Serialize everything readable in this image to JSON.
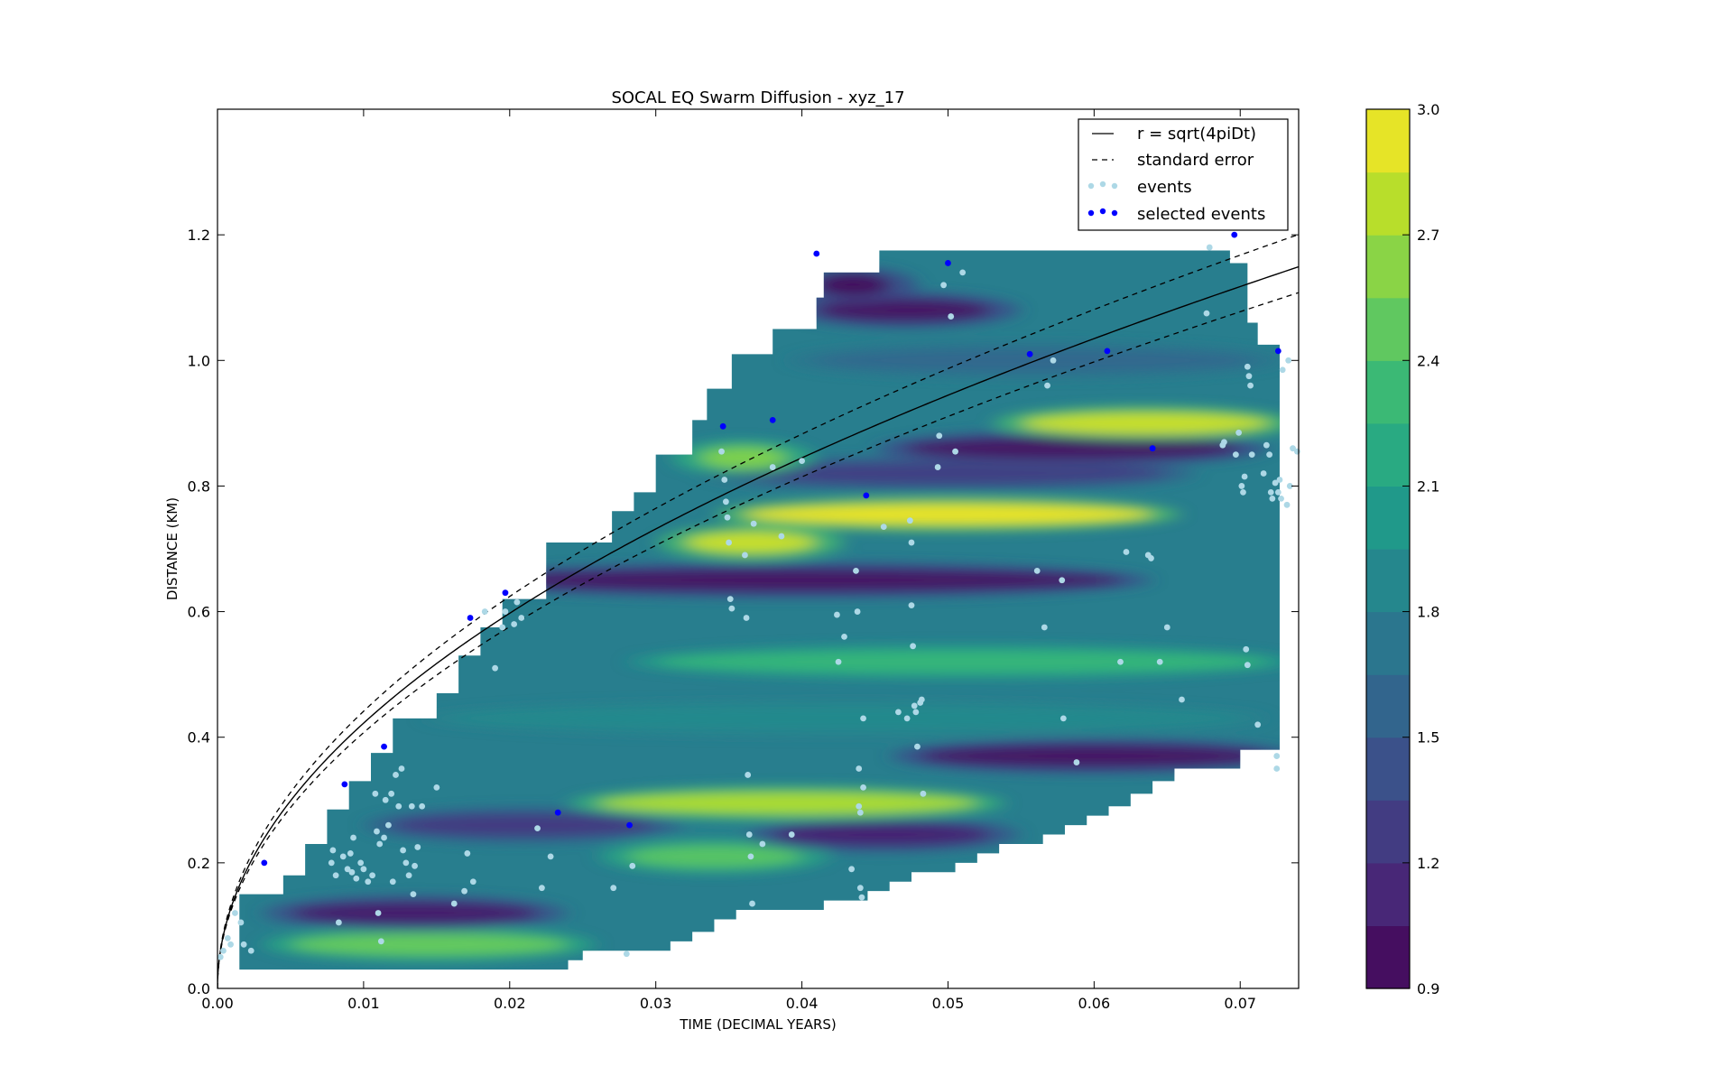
{
  "chart_data": {
    "type": "contour",
    "title": "SOCAL EQ Swarm Diffusion - xyz_17",
    "xlabel": "TIME (DECIMAL YEARS)",
    "ylabel": "DISTANCE (KM)",
    "xlim": [
      0.0,
      0.074
    ],
    "ylim": [
      0.0,
      1.4
    ],
    "xticks": [
      "0.00",
      "0.01",
      "0.02",
      "0.03",
      "0.04",
      "0.05",
      "0.06",
      "0.07"
    ],
    "yticks": [
      "0.0",
      "0.2",
      "0.4",
      "0.6",
      "0.8",
      "1.0",
      "1.2"
    ],
    "colorbar": {
      "colormap": "viridis",
      "min": 0.9,
      "max": 3.0,
      "ticks": [
        "0.9",
        "1.2",
        "1.5",
        "1.8",
        "2.1",
        "2.4",
        "2.7",
        "3.0"
      ],
      "levels": 14
    },
    "legend": {
      "position": "upper right",
      "entries": [
        {
          "label": "r = sqrt(4piDt)",
          "style": "solid-line",
          "color": "#000000"
        },
        {
          "label": "standard error",
          "style": "dashed-line",
          "color": "#000000"
        },
        {
          "label": "events",
          "style": "points",
          "color": "#add8e6"
        },
        {
          "label": "selected events",
          "style": "points",
          "color": "#0000ff"
        }
      ]
    },
    "model": {
      "name": "r = sqrt(4piDt)",
      "D": 1.42,
      "standard_error_D": [
        1.32,
        1.55
      ]
    },
    "contour_bands": [
      {
        "y": 0.07,
        "x_from": 0.005,
        "x_to": 0.024,
        "value": 2.5
      },
      {
        "y": 0.12,
        "x_from": 0.005,
        "x_to": 0.022,
        "value": 1.05
      },
      {
        "y": 0.21,
        "x_from": 0.028,
        "x_to": 0.04,
        "value": 2.45
      },
      {
        "y": 0.245,
        "x_from": 0.038,
        "x_to": 0.053,
        "value": 1.1
      },
      {
        "y": 0.26,
        "x_from": 0.012,
        "x_to": 0.03,
        "value": 1.25
      },
      {
        "y": 0.295,
        "x_from": 0.026,
        "x_to": 0.052,
        "value": 2.75
      },
      {
        "y": 0.37,
        "x_from": 0.048,
        "x_to": 0.072,
        "value": 1.0
      },
      {
        "y": 0.43,
        "x_from": 0.016,
        "x_to": 0.07,
        "value": 1.9
      },
      {
        "y": 0.52,
        "x_from": 0.03,
        "x_to": 0.072,
        "value": 2.3
      },
      {
        "y": 0.65,
        "x_from": 0.018,
        "x_to": 0.062,
        "value": 1.0
      },
      {
        "y": 0.71,
        "x_from": 0.032,
        "x_to": 0.041,
        "value": 2.85
      },
      {
        "y": 0.755,
        "x_from": 0.036,
        "x_to": 0.064,
        "value": 2.95
      },
      {
        "y": 0.82,
        "x_from": 0.035,
        "x_to": 0.065,
        "value": 1.3
      },
      {
        "y": 0.845,
        "x_from": 0.033,
        "x_to": 0.039,
        "value": 2.6
      },
      {
        "y": 0.86,
        "x_from": 0.047,
        "x_to": 0.07,
        "value": 1.0
      },
      {
        "y": 0.9,
        "x_from": 0.055,
        "x_to": 0.072,
        "value": 2.85
      },
      {
        "y": 1.0,
        "x_from": 0.041,
        "x_to": 0.071,
        "value": 1.6
      },
      {
        "y": 1.08,
        "x_from": 0.041,
        "x_to": 0.053,
        "value": 1.0
      },
      {
        "y": 1.12,
        "x_from": 0.041,
        "x_to": 0.046,
        "value": 0.95
      }
    ],
    "events": [
      {
        "x": 0.0002,
        "y": 0.05
      },
      {
        "x": 0.0004,
        "y": 0.06
      },
      {
        "x": 0.0007,
        "y": 0.08
      },
      {
        "x": 0.0009,
        "y": 0.07
      },
      {
        "x": 0.0012,
        "y": 0.12
      },
      {
        "x": 0.0016,
        "y": 0.105
      },
      {
        "x": 0.0018,
        "y": 0.07
      },
      {
        "x": 0.0023,
        "y": 0.06
      },
      {
        "x": 0.0078,
        "y": 0.2
      },
      {
        "x": 0.0079,
        "y": 0.22
      },
      {
        "x": 0.0081,
        "y": 0.18
      },
      {
        "x": 0.0083,
        "y": 0.105
      },
      {
        "x": 0.0086,
        "y": 0.21
      },
      {
        "x": 0.0089,
        "y": 0.19
      },
      {
        "x": 0.0091,
        "y": 0.215
      },
      {
        "x": 0.0092,
        "y": 0.185
      },
      {
        "x": 0.0093,
        "y": 0.24
      },
      {
        "x": 0.0095,
        "y": 0.175
      },
      {
        "x": 0.0098,
        "y": 0.2
      },
      {
        "x": 0.01,
        "y": 0.19
      },
      {
        "x": 0.0103,
        "y": 0.17
      },
      {
        "x": 0.0106,
        "y": 0.18
      },
      {
        "x": 0.0108,
        "y": 0.31
      },
      {
        "x": 0.0109,
        "y": 0.25
      },
      {
        "x": 0.011,
        "y": 0.12
      },
      {
        "x": 0.0111,
        "y": 0.23
      },
      {
        "x": 0.0112,
        "y": 0.075
      },
      {
        "x": 0.0114,
        "y": 0.24
      },
      {
        "x": 0.0115,
        "y": 0.3
      },
      {
        "x": 0.0117,
        "y": 0.26
      },
      {
        "x": 0.0119,
        "y": 0.31
      },
      {
        "x": 0.012,
        "y": 0.17
      },
      {
        "x": 0.0122,
        "y": 0.34
      },
      {
        "x": 0.0124,
        "y": 0.29
      },
      {
        "x": 0.0126,
        "y": 0.35
      },
      {
        "x": 0.0127,
        "y": 0.22
      },
      {
        "x": 0.0129,
        "y": 0.2
      },
      {
        "x": 0.0131,
        "y": 0.18
      },
      {
        "x": 0.0133,
        "y": 0.29
      },
      {
        "x": 0.0134,
        "y": 0.15
      },
      {
        "x": 0.0135,
        "y": 0.195
      },
      {
        "x": 0.0137,
        "y": 0.225
      },
      {
        "x": 0.014,
        "y": 0.29
      },
      {
        "x": 0.015,
        "y": 0.32
      },
      {
        "x": 0.0162,
        "y": 0.135
      },
      {
        "x": 0.0169,
        "y": 0.155
      },
      {
        "x": 0.0171,
        "y": 0.215
      },
      {
        "x": 0.0175,
        "y": 0.17
      },
      {
        "x": 0.0183,
        "y": 0.6
      },
      {
        "x": 0.019,
        "y": 0.51
      },
      {
        "x": 0.0195,
        "y": 0.575
      },
      {
        "x": 0.0197,
        "y": 0.6
      },
      {
        "x": 0.0203,
        "y": 0.58
      },
      {
        "x": 0.0205,
        "y": 0.615
      },
      {
        "x": 0.0208,
        "y": 0.59
      },
      {
        "x": 0.0219,
        "y": 0.255
      },
      {
        "x": 0.0222,
        "y": 0.16
      },
      {
        "x": 0.0228,
        "y": 0.21
      },
      {
        "x": 0.0271,
        "y": 0.16
      },
      {
        "x": 0.028,
        "y": 0.055
      },
      {
        "x": 0.0284,
        "y": 0.195
      },
      {
        "x": 0.0345,
        "y": 0.855
      },
      {
        "x": 0.0347,
        "y": 0.81
      },
      {
        "x": 0.0348,
        "y": 0.775
      },
      {
        "x": 0.0349,
        "y": 0.75
      },
      {
        "x": 0.035,
        "y": 0.71
      },
      {
        "x": 0.0351,
        "y": 0.62
      },
      {
        "x": 0.0352,
        "y": 0.605
      },
      {
        "x": 0.0361,
        "y": 0.69
      },
      {
        "x": 0.0362,
        "y": 0.59
      },
      {
        "x": 0.0363,
        "y": 0.34
      },
      {
        "x": 0.0364,
        "y": 0.245
      },
      {
        "x": 0.0365,
        "y": 0.21
      },
      {
        "x": 0.0366,
        "y": 0.135
      },
      {
        "x": 0.0367,
        "y": 0.74
      },
      {
        "x": 0.0373,
        "y": 0.23
      },
      {
        "x": 0.038,
        "y": 0.83
      },
      {
        "x": 0.0386,
        "y": 0.72
      },
      {
        "x": 0.0393,
        "y": 0.245
      },
      {
        "x": 0.04,
        "y": 0.84
      },
      {
        "x": 0.0424,
        "y": 0.595
      },
      {
        "x": 0.0425,
        "y": 0.52
      },
      {
        "x": 0.0429,
        "y": 0.56
      },
      {
        "x": 0.0434,
        "y": 0.19
      },
      {
        "x": 0.0437,
        "y": 0.665
      },
      {
        "x": 0.0438,
        "y": 0.6
      },
      {
        "x": 0.0439,
        "y": 0.35
      },
      {
        "x": 0.0439,
        "y": 0.29
      },
      {
        "x": 0.044,
        "y": 0.28
      },
      {
        "x": 0.044,
        "y": 0.16
      },
      {
        "x": 0.0441,
        "y": 0.145
      },
      {
        "x": 0.0442,
        "y": 0.32
      },
      {
        "x": 0.0442,
        "y": 0.43
      },
      {
        "x": 0.0456,
        "y": 0.735
      },
      {
        "x": 0.0466,
        "y": 0.44
      },
      {
        "x": 0.0472,
        "y": 0.43
      },
      {
        "x": 0.0474,
        "y": 0.745
      },
      {
        "x": 0.0475,
        "y": 0.71
      },
      {
        "x": 0.0475,
        "y": 0.61
      },
      {
        "x": 0.0476,
        "y": 0.545
      },
      {
        "x": 0.0477,
        "y": 0.45
      },
      {
        "x": 0.0478,
        "y": 0.44
      },
      {
        "x": 0.0479,
        "y": 0.385
      },
      {
        "x": 0.0481,
        "y": 0.455
      },
      {
        "x": 0.0482,
        "y": 0.46
      },
      {
        "x": 0.0483,
        "y": 0.31
      },
      {
        "x": 0.0493,
        "y": 0.83
      },
      {
        "x": 0.0494,
        "y": 0.88
      },
      {
        "x": 0.0502,
        "y": 1.07
      },
      {
        "x": 0.0505,
        "y": 0.855
      },
      {
        "x": 0.0497,
        "y": 1.12
      },
      {
        "x": 0.051,
        "y": 1.14
      },
      {
        "x": 0.0561,
        "y": 0.665
      },
      {
        "x": 0.0566,
        "y": 0.575
      },
      {
        "x": 0.0568,
        "y": 0.96
      },
      {
        "x": 0.0572,
        "y": 1.0
      },
      {
        "x": 0.0578,
        "y": 0.65
      },
      {
        "x": 0.0579,
        "y": 0.43
      },
      {
        "x": 0.0588,
        "y": 0.36
      },
      {
        "x": 0.0618,
        "y": 0.52
      },
      {
        "x": 0.0622,
        "y": 0.695
      },
      {
        "x": 0.0637,
        "y": 0.69
      },
      {
        "x": 0.0639,
        "y": 0.685
      },
      {
        "x": 0.0645,
        "y": 0.52
      },
      {
        "x": 0.065,
        "y": 0.575
      },
      {
        "x": 0.066,
        "y": 0.46
      },
      {
        "x": 0.0677,
        "y": 1.075
      },
      {
        "x": 0.0679,
        "y": 1.18
      },
      {
        "x": 0.0688,
        "y": 0.865
      },
      {
        "x": 0.0689,
        "y": 0.87
      },
      {
        "x": 0.0697,
        "y": 0.85
      },
      {
        "x": 0.0699,
        "y": 0.885
      },
      {
        "x": 0.0701,
        "y": 0.8
      },
      {
        "x": 0.0702,
        "y": 0.79
      },
      {
        "x": 0.0703,
        "y": 0.815
      },
      {
        "x": 0.0704,
        "y": 0.54
      },
      {
        "x": 0.0705,
        "y": 0.515
      },
      {
        "x": 0.0705,
        "y": 0.99
      },
      {
        "x": 0.0706,
        "y": 0.975
      },
      {
        "x": 0.0707,
        "y": 0.96
      },
      {
        "x": 0.0708,
        "y": 0.85
      },
      {
        "x": 0.0712,
        "y": 0.42
      },
      {
        "x": 0.0716,
        "y": 0.82
      },
      {
        "x": 0.0718,
        "y": 0.865
      },
      {
        "x": 0.072,
        "y": 0.85
      },
      {
        "x": 0.0721,
        "y": 0.79
      },
      {
        "x": 0.0722,
        "y": 0.78
      },
      {
        "x": 0.0724,
        "y": 0.805
      },
      {
        "x": 0.0725,
        "y": 0.35
      },
      {
        "x": 0.0725,
        "y": 0.37
      },
      {
        "x": 0.0726,
        "y": 0.79
      },
      {
        "x": 0.0727,
        "y": 0.81
      },
      {
        "x": 0.0728,
        "y": 0.78
      },
      {
        "x": 0.0729,
        "y": 0.985
      },
      {
        "x": 0.0732,
        "y": 0.77
      },
      {
        "x": 0.0733,
        "y": 1.0
      },
      {
        "x": 0.0734,
        "y": 0.8
      },
      {
        "x": 0.0736,
        "y": 0.86
      },
      {
        "x": 0.0739,
        "y": 0.855
      }
    ],
    "selected_events": [
      {
        "x": 0.0032,
        "y": 0.2
      },
      {
        "x": 0.0087,
        "y": 0.325
      },
      {
        "x": 0.0114,
        "y": 0.385
      },
      {
        "x": 0.0173,
        "y": 0.59
      },
      {
        "x": 0.0197,
        "y": 0.63
      },
      {
        "x": 0.0233,
        "y": 0.28
      },
      {
        "x": 0.0282,
        "y": 0.26
      },
      {
        "x": 0.0346,
        "y": 0.895
      },
      {
        "x": 0.038,
        "y": 0.905
      },
      {
        "x": 0.041,
        "y": 1.17
      },
      {
        "x": 0.0444,
        "y": 0.785
      },
      {
        "x": 0.05,
        "y": 1.155
      },
      {
        "x": 0.0556,
        "y": 1.01
      },
      {
        "x": 0.0609,
        "y": 1.015
      },
      {
        "x": 0.064,
        "y": 0.86
      },
      {
        "x": 0.0696,
        "y": 1.2
      },
      {
        "x": 0.0726,
        "y": 1.015
      }
    ]
  }
}
